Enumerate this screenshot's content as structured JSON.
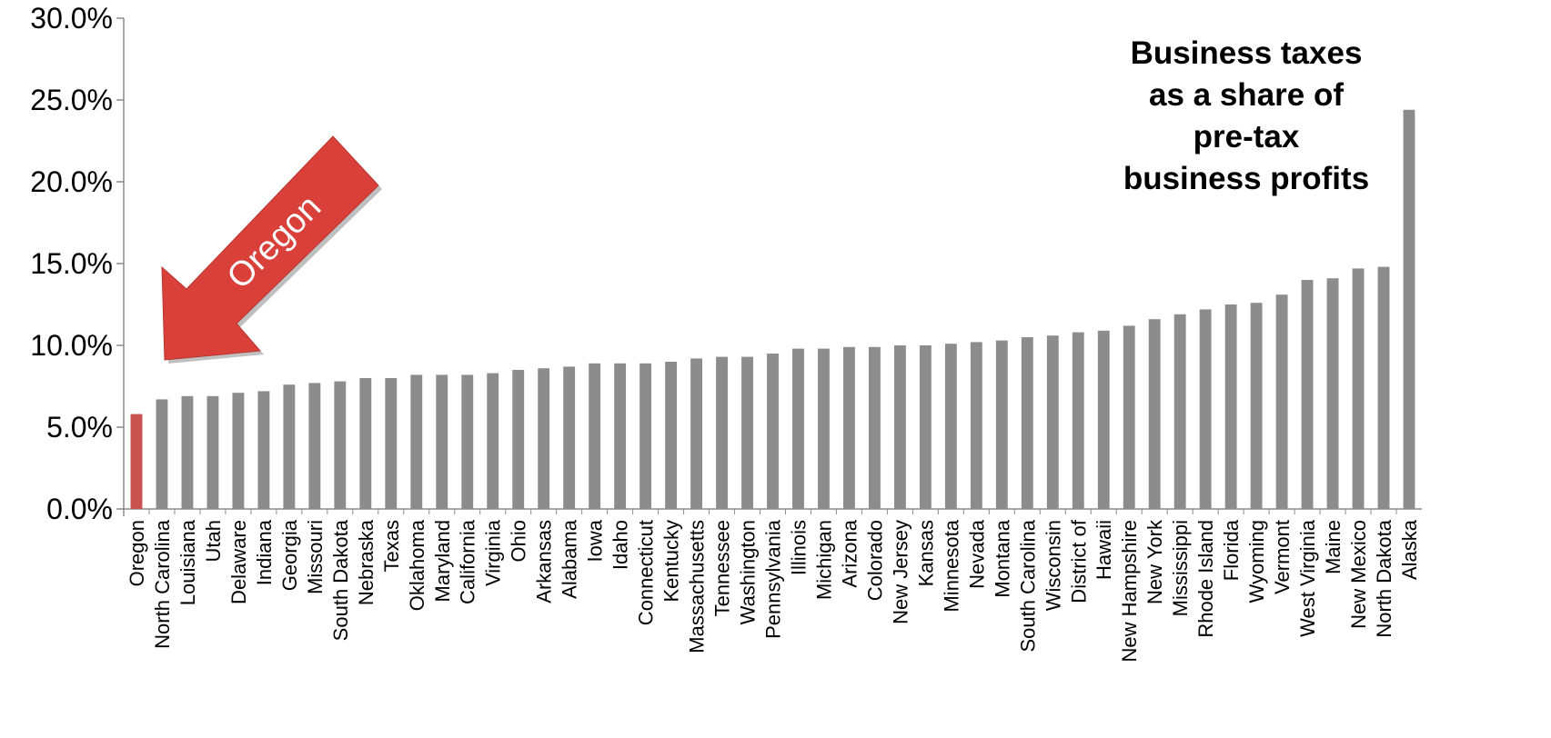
{
  "chart_data": {
    "type": "bar",
    "title_lines": [
      "Business taxes",
      "as a share of",
      "pre-tax",
      "business profits"
    ],
    "y_tick_labels": [
      "0.0%",
      "5.0%",
      "10.0%",
      "15.0%",
      "20.0%",
      "25.0%",
      "30.0%"
    ],
    "ylim": [
      0,
      30
    ],
    "grid": false,
    "highlight_category": "Oregon",
    "annotation": "Oregon",
    "colors": {
      "bar": "#8c8c8c",
      "highlight_bar": "#c9514f",
      "arrow": "#d9403a",
      "axis": "#8c8c8c"
    },
    "categories": [
      "Oregon",
      "North Carolina",
      "Louisiana",
      "Utah",
      "Delaware",
      "Indiana",
      "Georgia",
      "Missouri",
      "South Dakota",
      "Nebraska",
      "Texas",
      "Oklahoma",
      "Maryland",
      "California",
      "Virginia",
      "Ohio",
      "Arkansas",
      "Alabama",
      "Iowa",
      "Idaho",
      "Connecticut",
      "Kentucky",
      "Massachusetts",
      "Tennessee",
      "Washington",
      "Pennsylvania",
      "Illinois",
      "Michigan",
      "Arizona",
      "Colorado",
      "New Jersey",
      "Kansas",
      "Minnesota",
      "Nevada",
      "Montana",
      "South Carolina",
      "Wisconsin",
      "District of",
      "Hawaii",
      "New Hampshire",
      "New York",
      "Mississippi",
      "Rhode Island",
      "Florida",
      "Wyoming",
      "Vermont",
      "West Virginia",
      "Maine",
      "New Mexico",
      "North Dakota",
      "Alaska"
    ],
    "values": [
      5.8,
      6.7,
      6.9,
      6.9,
      7.1,
      7.2,
      7.6,
      7.7,
      7.8,
      8.0,
      8.0,
      8.2,
      8.2,
      8.2,
      8.3,
      8.5,
      8.6,
      8.7,
      8.9,
      8.9,
      8.9,
      9.0,
      9.2,
      9.3,
      9.3,
      9.5,
      9.8,
      9.8,
      9.9,
      9.9,
      10.0,
      10.0,
      10.1,
      10.2,
      10.3,
      10.5,
      10.6,
      10.8,
      10.9,
      11.2,
      11.6,
      11.9,
      12.2,
      12.5,
      12.6,
      13.1,
      14.0,
      14.1,
      14.7,
      14.8,
      24.4
    ]
  }
}
